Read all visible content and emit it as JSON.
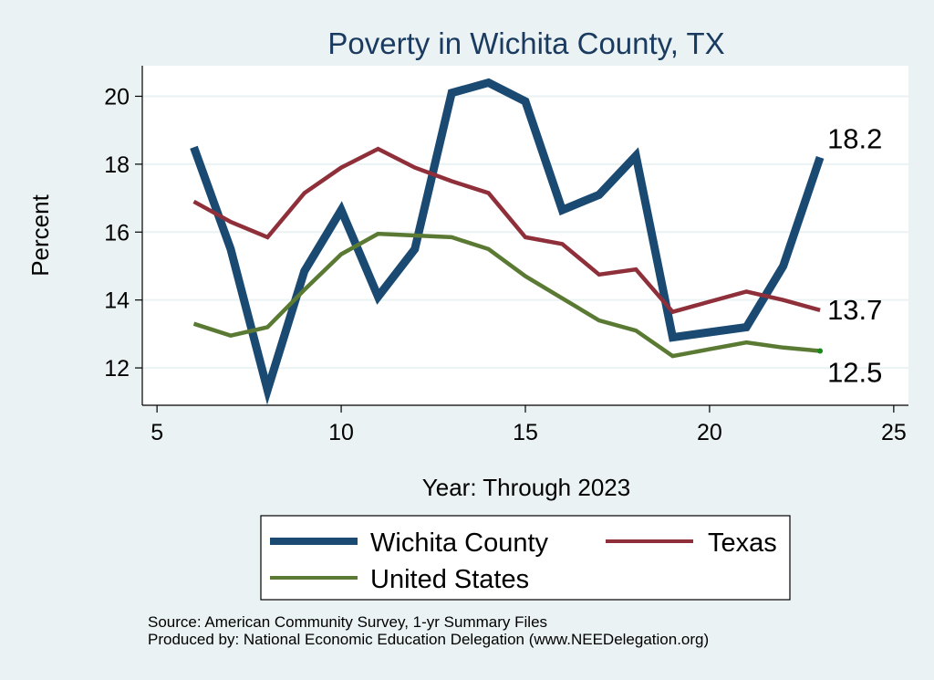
{
  "colors": {
    "page_background": "#eaf2f3",
    "plot_background": "#ffffff",
    "title": "#1a3a5f",
    "grid": "#eaf2f3"
  },
  "chart_data": {
    "type": "line",
    "title": "Poverty in Wichita County, TX",
    "xlabel": "Year: Through 2023",
    "ylabel": "Percent",
    "xlim": [
      4.6,
      25.4
    ],
    "ylim": [
      10.9,
      20.9
    ],
    "xticks": [
      5,
      10,
      15,
      20,
      25
    ],
    "yticks": [
      12,
      14,
      16,
      18,
      20
    ],
    "grid": "horizontal",
    "legend_position": "bottom",
    "series": [
      {
        "name": "Wichita County",
        "color": "#1a4a72",
        "x": [
          6,
          7,
          8,
          9,
          10,
          11,
          12,
          13,
          14,
          15,
          16,
          17,
          18,
          19,
          20,
          21,
          22,
          23
        ],
        "values": [
          18.5,
          15.5,
          11.35,
          14.85,
          16.65,
          14.1,
          15.5,
          20.1,
          20.4,
          19.85,
          16.65,
          17.1,
          18.25,
          12.9,
          13.05,
          13.2,
          15.0,
          18.2
        ],
        "end_label": "18.2"
      },
      {
        "name": "Texas",
        "color": "#8e2f3a",
        "x": [
          6,
          7,
          8,
          9,
          10,
          11,
          12,
          13,
          14,
          15,
          16,
          17,
          18,
          19,
          20,
          21,
          22,
          23
        ],
        "values": [
          16.9,
          16.3,
          15.85,
          17.15,
          17.9,
          18.45,
          17.9,
          17.5,
          17.15,
          15.85,
          15.65,
          14.75,
          14.9,
          13.65,
          13.95,
          14.25,
          14.0,
          13.7
        ],
        "end_label": "13.7"
      },
      {
        "name": "United States",
        "color": "#5a7a34",
        "x": [
          6,
          7,
          8,
          9,
          10,
          11,
          12,
          13,
          14,
          15,
          16,
          17,
          18,
          19,
          20,
          21,
          22,
          23
        ],
        "values": [
          13.3,
          12.95,
          13.2,
          14.3,
          15.35,
          15.95,
          15.9,
          15.85,
          15.5,
          14.7,
          14.05,
          13.4,
          13.1,
          12.35,
          12.55,
          12.75,
          12.6,
          12.5
        ],
        "end_label": "12.5"
      }
    ]
  },
  "footer": {
    "source": "Source: American Community Survey, 1-yr Summary Files",
    "produced_by": "Produced by: National Economic Education Delegation (www.NEEDelegation.org)"
  }
}
